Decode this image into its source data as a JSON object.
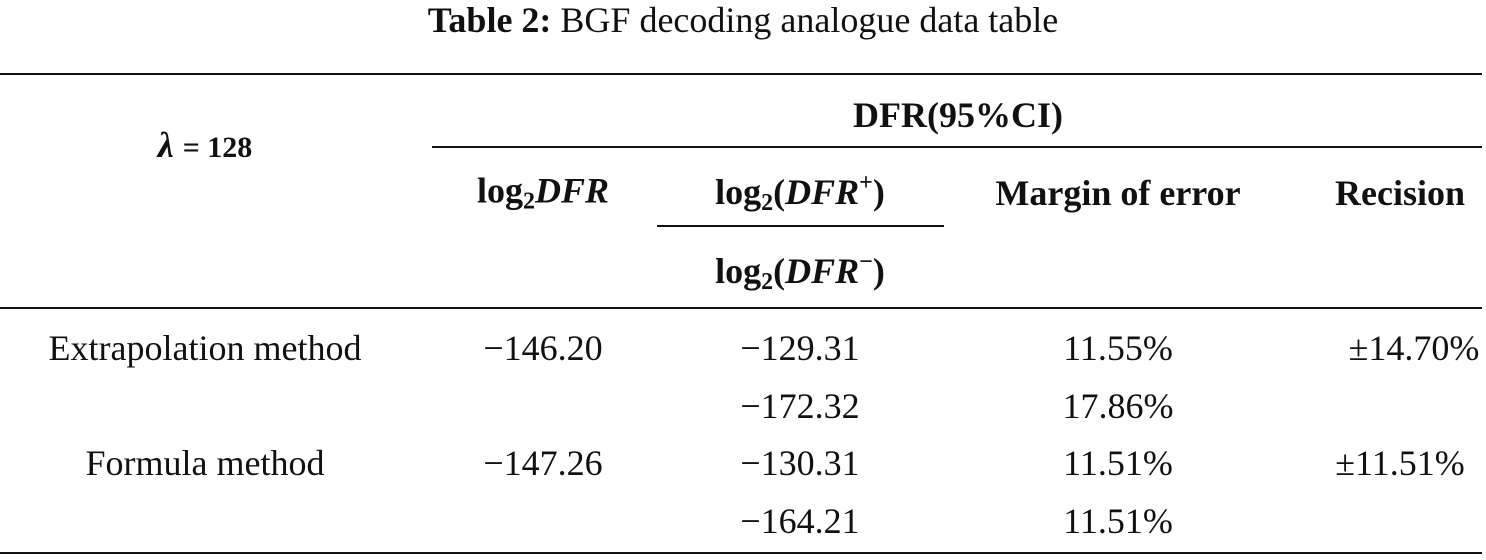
{
  "caption": {
    "label": "Table 2:",
    "text": "BGF decoding analogue data table"
  },
  "header": {
    "lambda": {
      "symbol": "λ",
      "rest": "= 128"
    },
    "group": "DFR(95%CI)",
    "col1": [
      "log",
      "2",
      "DFR"
    ],
    "col2_top": [
      "log",
      "2",
      "(",
      "DFR",
      "+",
      ")"
    ],
    "col2_bottom": [
      "log",
      "2",
      "(",
      "DFR",
      "−",
      ")"
    ],
    "col3": "Margin of error",
    "col4": "Recision"
  },
  "rows": [
    {
      "method": "Extrapolation method",
      "log2dfr": "−146.20",
      "bounds": [
        "−129.31",
        "−172.32"
      ],
      "margins": [
        "11.55%",
        "17.86%"
      ],
      "recision": "±14.70%"
    },
    {
      "method": "Formula method",
      "log2dfr": "−147.26",
      "bounds": [
        "−130.31",
        "−164.21"
      ],
      "margins": [
        "11.51%",
        "11.51%"
      ],
      "recision": "±11.51%"
    }
  ]
}
